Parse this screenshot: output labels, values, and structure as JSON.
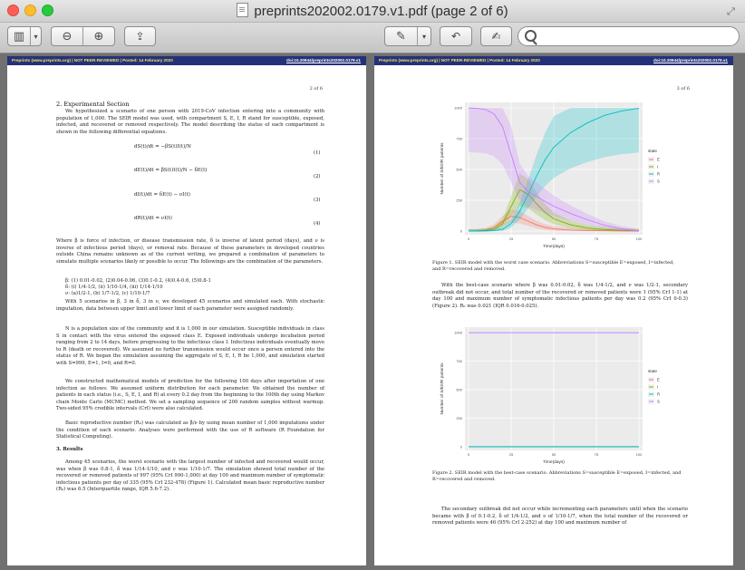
{
  "window": {
    "title": "preprints202002.0179.v1.pdf (page 2 of 6)"
  },
  "toolbar": {
    "search_placeholder": ""
  },
  "header": {
    "left": "Preprints (www.preprints.org)  |  NOT PEER-REVIEWED  |  Posted: 14 February 2020",
    "right": "doi:10.20944/preprints202002.0179.v1"
  },
  "page1": {
    "page_num": "2 of 6",
    "section": "2. Experimental Section",
    "para1": "We hypothesized a scenario of one person with 2019-CoV infection entering into a community with population of 1,000. The SEIR model was used, with compartment S, E, I, R stand for susceptible, exposed, infected, and recovered or removed respectively. The model describing the status of each compartment is shown in the following differential equations.",
    "eq1": "dS(t)/dt = −βS(t)I(t)/N",
    "eq2": "dE(t)/dt = βS(t)I(t)/N − δE(t)",
    "eq3": "dI(t)/dt = δE(t) − νI(t)",
    "eq4": "dR(t)/dt = νI(t)",
    "n1": "(1)",
    "n2": "(2)",
    "n3": "(3)",
    "n4": "(4)",
    "para2": "Where β is force of infection, or disease transmission rate, δ is inverse of latent period (days), and ν is inverse of infectious period (days), or removal rate. Because of these parameters in developed countries outside China remains unknown as of the current writing, we prepared a combination of parameters to simulate multiple scenarios likely or possible to occur. The followings are the combination of the parameters.",
    "list1": "β: (1) 0.01-0.02, (2)0.04-0.06, (3)0.1-0.2, (4)0.4-0.6, (5)0.8-1",
    "list2": "δ: (i) 1/4-1/2, (ii) 1/10-1/4, (iii) 1/14-1/10",
    "list3": "ν: (a)1/2-1, (b) 1/7-1/2, (c) 1/10-1/7",
    "para3": "With 5 scenarios in β, 3 in δ, 3 in ν, we developed 45 scenarios and simulated each. With stochastic imputation, data between upper limit and lower limit of each parameter were assigned randomly.",
    "para4": "N is a population size of the community and it is 1,000 in our simulation. Susceptible individuals in class S in contact with the virus entered the exposed class E. Exposed individuals undergo incubation period ranging from 2 to 14 days, before progressing to the infectious class I. Infectious individuals eventually move to R (death or recovered). We assumed no further transmission would occur once a person entered into the status of R. We began the simulation assuming the aggregate of S, E, I, R be 1,000, and simulation started with S=999, E=1, I=0, and R=0.",
    "para5": "We constructed mathematical models of prediction for the following 100 days after importation of one infection as follows: We assumed uniform distribution for each parameter. We obtained the number of patients in each status (i.e., S, E, I, and R) at every 0.2 day from the beginning to the 100th day using Markov chain Monte Carlo (MCMC) method. We set a sampling sequence of 200 random samples without warmup. Two-sided 95% credible intervals (CrI) were also calculated.",
    "para6": "Basic reproductive number (R₀) was calculated as β/ν by using mean number of 1,000 imputations under the condition of each scenario. Analyses were performed with the use of R software (R Foundation for Statistical Computing).",
    "results": "3. Results",
    "para7": "Among 45 scenarios, the worst scenario with the largest number of infected and recovered would occur, was when β was 0.8-1, δ was 1/14-1/10, and ν was 1/10-1/7. The simulation showed total number of the recovered or removed patients of 997 (95% CrI 990-1,000) at day 100 and maximum number of symptomatic infectious patients per day of 335 (95% CrI 232-478) (Figure 1). Calculated mean basic reproductive number (R₀) was 6.5 (Interquartile range, IQR 5.6-7.2)."
  },
  "page2": {
    "page_num": "3 of 6",
    "fig1_caption": "Figure 1. SEIR model with the worst case scenario. Abbreviations S=susceptible E=exposed, I=infected, and R=recovered and removed.",
    "para1": "With the best-case scenario where β was 0.01-0.02, δ was 1/4-1/2, and ν was 1/2-1, secondary outbreak did not occur, and total number of the recovered or removed patients were 1 (95% CrI 1-1) at day 100 and maximum number of symptomatic infectious patients per day was 0.2 (95% CrI 0-0.3) (Figure 2). R₀ was 0.021 (IQR 0.016-0.025).",
    "fig2_caption": "Figure 2. SEIR model with the best-case scenario. Abbreviations S=susceptible E=exposed, I=infected, and R=recovered and removed.",
    "para2": "The secondary outbreak did not occur while incrementing each parameters until when the scenario became with β of 0.1-0.2, δ of 1/4-1/2, and ν of 1/10-1/7, when the total number of the recovered or removed patients were 46 (95% CrI 2-252) at day 100 and maximum number of"
  },
  "colors": {
    "E": "#f8766d",
    "I": "#7cae00",
    "R": "#00bfc4",
    "S": "#c77cff",
    "header_bg": "#24317a",
    "header_fg": "#f2e15a"
  },
  "chart_data": [
    {
      "type": "line",
      "xlabel": "Time(days)",
      "ylabel": "Number of S/E/I/R patients",
      "xlim": [
        0,
        100
      ],
      "ylim": [
        0,
        1000
      ],
      "xticks": [
        "0",
        "25",
        "50",
        "75",
        "100"
      ],
      "yticks": [
        "0",
        "250",
        "500",
        "750",
        "1000"
      ],
      "legend_title": "state",
      "legend_position": "right",
      "x": [
        0,
        5,
        10,
        15,
        20,
        25,
        30,
        35,
        40,
        45,
        50,
        60,
        70,
        80,
        90,
        100
      ],
      "series": [
        {
          "name": "E",
          "values": [
            0,
            2,
            8,
            30,
            80,
            120,
            110,
            80,
            50,
            30,
            18,
            8,
            4,
            2,
            1,
            0
          ]
        },
        {
          "name": "I",
          "values": [
            0,
            1,
            4,
            15,
            60,
            200,
            335,
            300,
            220,
            150,
            100,
            50,
            25,
            12,
            6,
            3
          ]
        },
        {
          "name": "R",
          "values": [
            0,
            0,
            1,
            3,
            15,
            60,
            160,
            300,
            450,
            580,
            680,
            800,
            880,
            940,
            975,
            997
          ]
        },
        {
          "name": "S",
          "values": [
            999,
            996,
            986,
            950,
            845,
            620,
            395,
            320,
            280,
            240,
            202,
            142,
            91,
            46,
            18,
            0
          ]
        }
      ]
    },
    {
      "type": "line",
      "xlabel": "Time(days)",
      "ylabel": "Number of S/E/I/R patients",
      "xlim": [
        0,
        100
      ],
      "ylim": [
        0,
        1000
      ],
      "xticks": [
        "0",
        "25",
        "50",
        "75",
        "100"
      ],
      "yticks": [
        "0",
        "250",
        "500",
        "750",
        "1000"
      ],
      "legend_title": "state",
      "legend_position": "right",
      "x": [
        0,
        25,
        50,
        75,
        100
      ],
      "series": [
        {
          "name": "E",
          "values": [
            1,
            0,
            0,
            0,
            0
          ]
        },
        {
          "name": "I",
          "values": [
            0,
            0,
            0,
            0,
            0
          ]
        },
        {
          "name": "R",
          "values": [
            0,
            1,
            1,
            1,
            1
          ]
        },
        {
          "name": "S",
          "values": [
            999,
            999,
            999,
            999,
            999
          ]
        }
      ]
    }
  ]
}
